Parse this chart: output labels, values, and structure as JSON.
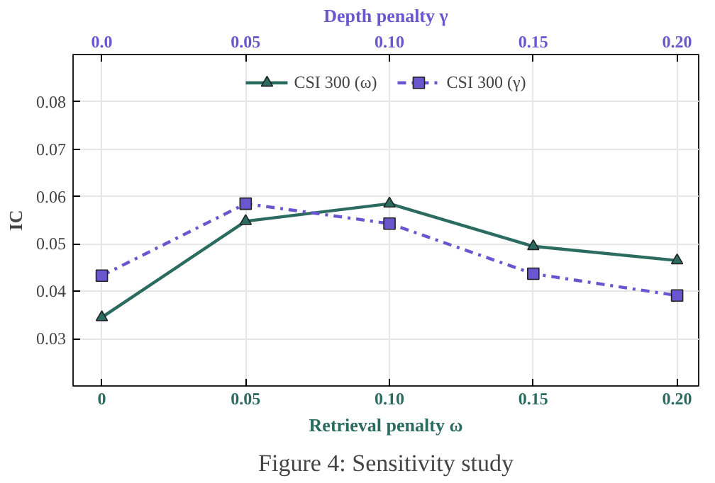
{
  "chart_data": {
    "type": "line",
    "xlabel": "Retrieval penalty ω",
    "x2label": "Depth penalty γ",
    "ylabel": "IC",
    "x": [
      0,
      0.05,
      0.1,
      0.15,
      0.2
    ],
    "series": [
      {
        "name": "CSI 300 (ω)",
        "color": "#2b6b60",
        "values": [
          0.0345,
          0.0548,
          0.0585,
          0.0495,
          0.0465
        ],
        "marker": "triangle",
        "line_style": "solid"
      },
      {
        "name": "CSI 300 (γ)",
        "color": "#6a56cf",
        "values": [
          0.0433,
          0.0585,
          0.0543,
          0.0437,
          0.0391
        ],
        "marker": "square",
        "line_style": "dashdot"
      }
    ],
    "xlim": [
      -0.01,
      0.2075
    ],
    "xticks": [
      {
        "value": 0,
        "label": "0"
      },
      0.05,
      {
        "value": 0.1,
        "label": "0.10"
      },
      0.15,
      {
        "value": 0.2,
        "label": "0.20"
      }
    ],
    "x2lim": [
      -0.01,
      0.2075
    ],
    "x2ticks": [
      {
        "value": 0,
        "label": "0.0"
      },
      0.05,
      {
        "value": 0.1,
        "label": "0.10"
      },
      0.15,
      {
        "value": 0.2,
        "label": "0.20"
      }
    ],
    "ylim": [
      0.02,
      0.09
    ],
    "yticks": [
      0.03,
      0.04,
      0.05,
      0.06,
      0.07,
      0.08
    ],
    "grid": true,
    "legend": "top",
    "annotations": [
      "Figure 4: Sensitivity study"
    ]
  }
}
